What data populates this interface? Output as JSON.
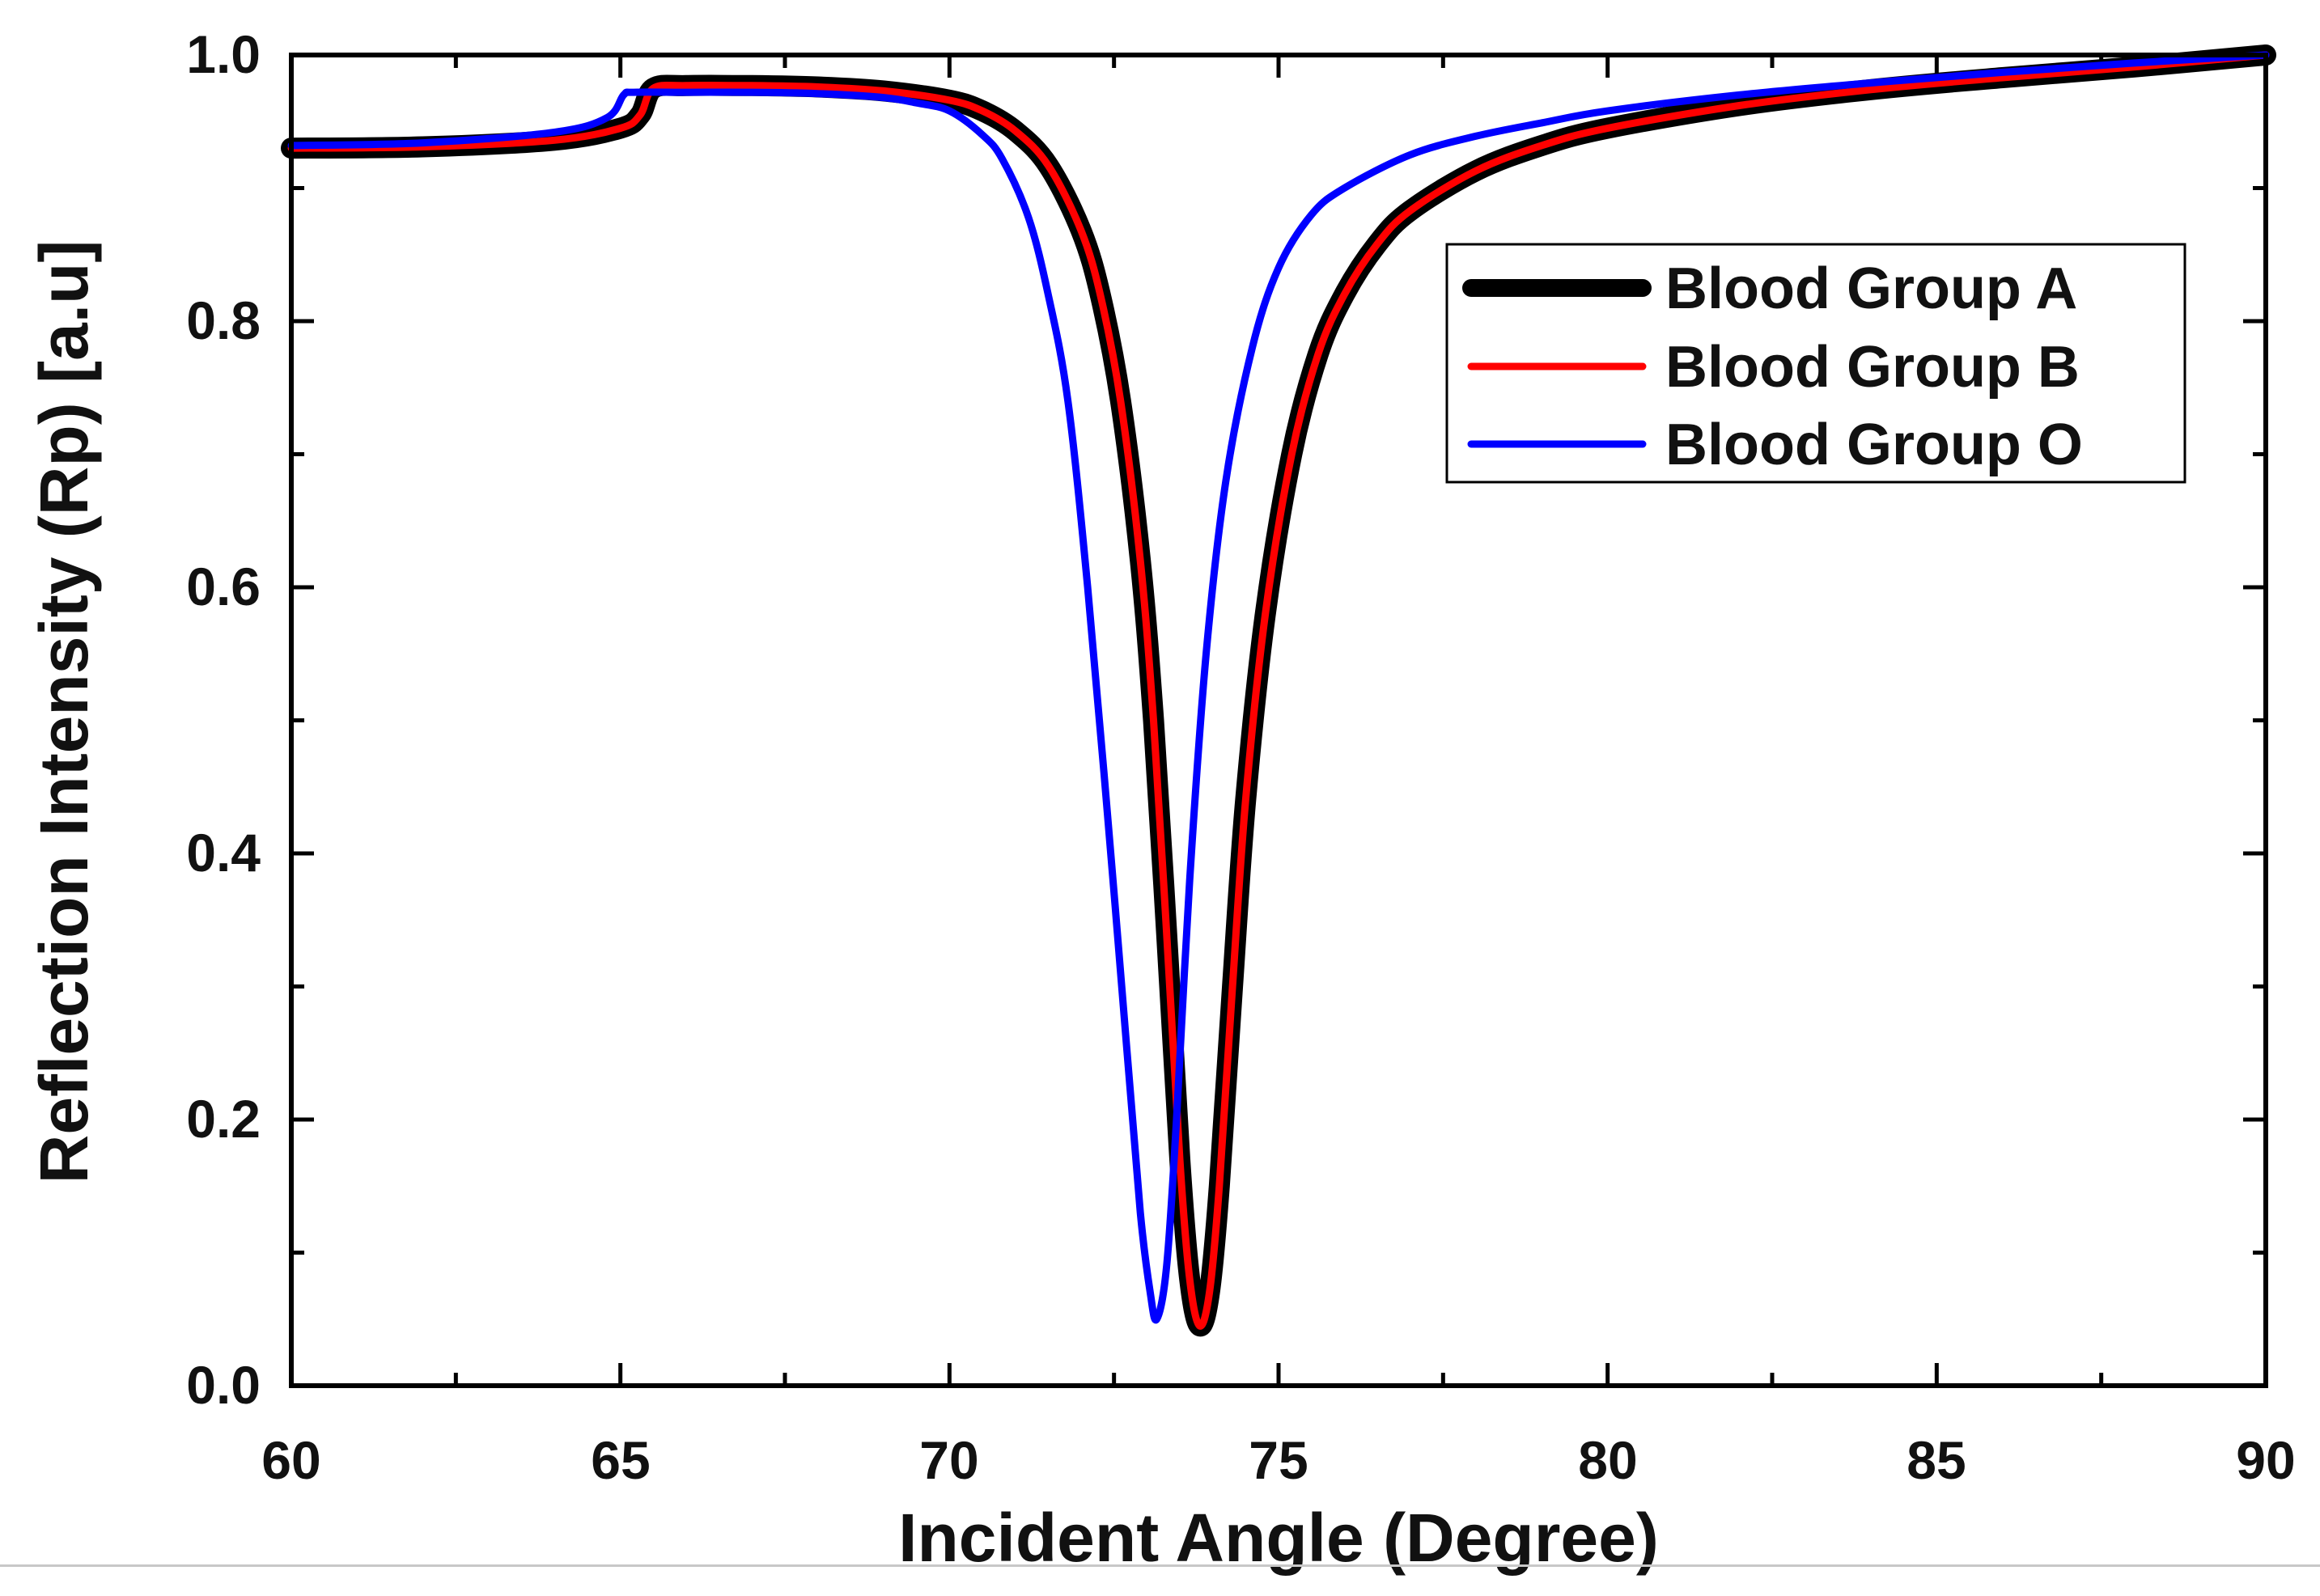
{
  "chart_data": {
    "type": "line",
    "title": "",
    "xlabel": "Incident Angle (Degree)",
    "ylabel": "Reflection Intensity (Rp) [a.u]",
    "xlim": [
      60,
      90
    ],
    "ylim": [
      0.0,
      1.0
    ],
    "x_ticks": [
      60,
      65,
      70,
      75,
      80,
      85,
      90
    ],
    "x_tick_labels": [
      "60",
      "65",
      "70",
      "75",
      "80",
      "85",
      "90"
    ],
    "y_ticks": [
      0.0,
      0.2,
      0.4,
      0.6,
      0.8,
      1.0
    ],
    "y_tick_labels": [
      "0.0",
      "0.2",
      "0.4",
      "0.6",
      "0.8",
      "1.0"
    ],
    "grid": false,
    "legend_position": "top-right",
    "series": [
      {
        "name": "Blood Group A",
        "color": "#000000",
        "line_weight": "thick",
        "x": [
          60,
          62,
          64,
          65,
          65.3,
          65.5,
          66,
          67,
          68,
          69,
          70,
          70.5,
          71,
          71.5,
          72,
          72.3,
          72.6,
          72.9,
          73.1,
          73.3,
          73.5,
          73.65,
          73.8,
          73.95,
          74.1,
          74.3,
          74.5,
          74.8,
          75.2,
          75.6,
          76,
          76.5,
          77,
          78,
          79,
          80,
          82,
          84,
          86,
          88,
          90
        ],
        "y": [
          0.93,
          0.931,
          0.936,
          0.945,
          0.955,
          0.975,
          0.977,
          0.977,
          0.976,
          0.973,
          0.966,
          0.958,
          0.943,
          0.917,
          0.868,
          0.818,
          0.74,
          0.62,
          0.5,
          0.34,
          0.17,
          0.08,
          0.045,
          0.07,
          0.15,
          0.3,
          0.44,
          0.58,
          0.7,
          0.775,
          0.82,
          0.858,
          0.883,
          0.913,
          0.932,
          0.945,
          0.962,
          0.974,
          0.983,
          0.991,
          1.0
        ]
      },
      {
        "name": "Blood Group B",
        "color": "#ff0000",
        "line_weight": "normal",
        "x": [
          60,
          62,
          64,
          65,
          65.3,
          65.5,
          66,
          67,
          68,
          69,
          70,
          70.5,
          71,
          71.5,
          72,
          72.3,
          72.6,
          72.9,
          73.1,
          73.3,
          73.5,
          73.65,
          73.8,
          73.95,
          74.1,
          74.3,
          74.5,
          74.8,
          75.2,
          75.6,
          76,
          76.5,
          77,
          78,
          79,
          80,
          82,
          84,
          86,
          88,
          90
        ],
        "y": [
          0.93,
          0.931,
          0.936,
          0.945,
          0.955,
          0.975,
          0.977,
          0.977,
          0.976,
          0.973,
          0.966,
          0.958,
          0.943,
          0.917,
          0.868,
          0.818,
          0.74,
          0.62,
          0.5,
          0.34,
          0.17,
          0.08,
          0.045,
          0.07,
          0.15,
          0.3,
          0.44,
          0.58,
          0.7,
          0.775,
          0.82,
          0.858,
          0.883,
          0.913,
          0.932,
          0.945,
          0.962,
          0.974,
          0.983,
          0.991,
          1.0
        ]
      },
      {
        "name": "Blood Group O",
        "color": "#0000ff",
        "line_weight": "normal",
        "x": [
          60,
          62,
          64,
          64.8,
          65.05,
          65.2,
          66,
          67,
          68,
          69,
          69.5,
          70,
          70.5,
          70.8,
          71.2,
          71.5,
          71.8,
          72.1,
          72.4,
          72.7,
          72.9,
          73.05,
          73.15,
          73.3,
          73.45,
          73.65,
          73.9,
          74.2,
          74.6,
          75,
          75.5,
          76,
          77,
          78,
          79,
          80,
          82,
          84,
          86,
          88,
          90
        ],
        "y": [
          0.932,
          0.934,
          0.942,
          0.953,
          0.97,
          0.972,
          0.972,
          0.972,
          0.971,
          0.968,
          0.964,
          0.958,
          0.94,
          0.922,
          0.878,
          0.82,
          0.74,
          0.6,
          0.43,
          0.25,
          0.13,
          0.07,
          0.05,
          0.09,
          0.2,
          0.38,
          0.55,
          0.68,
          0.78,
          0.84,
          0.88,
          0.9,
          0.925,
          0.939,
          0.949,
          0.958,
          0.97,
          0.979,
          0.987,
          0.994,
          1.0
        ]
      }
    ]
  }
}
